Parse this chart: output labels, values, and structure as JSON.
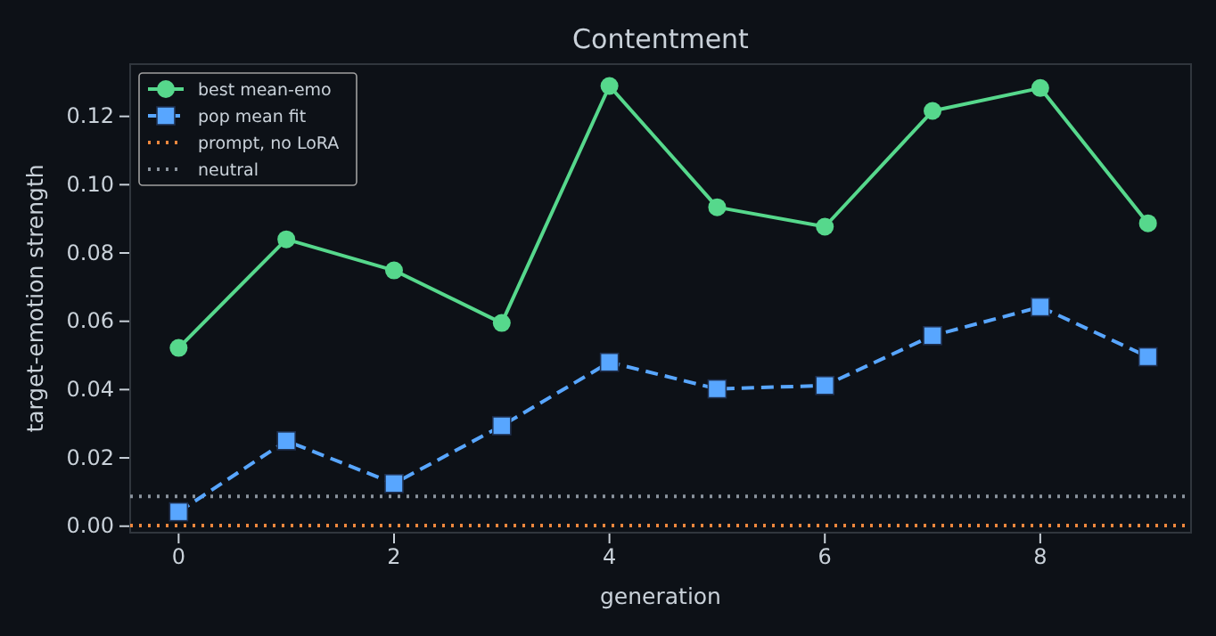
{
  "chart_data": {
    "type": "line",
    "title": "Contentment",
    "xlabel": "generation",
    "ylabel": "target-emotion strength",
    "x": [
      0,
      1,
      2,
      3,
      4,
      5,
      6,
      7,
      8,
      9
    ],
    "series": [
      {
        "name": "best mean-emo",
        "color": "#56d88c",
        "marker": "circle",
        "line_style": "solid",
        "values": [
          0.0522,
          0.084,
          0.0749,
          0.0595,
          0.1289,
          0.0934,
          0.0877,
          0.1216,
          0.1283,
          0.0887
        ]
      },
      {
        "name": "pop mean fit",
        "color": "#58a6ff",
        "marker": "square",
        "line_style": "dashed",
        "values": [
          0.0042,
          0.025,
          0.0125,
          0.0294,
          0.048,
          0.0402,
          0.0412,
          0.0558,
          0.0642,
          0.0496
        ]
      }
    ],
    "ref_lines": [
      {
        "axis": "y",
        "value": 0.0002,
        "label": "prompt, no LoRA",
        "color": "#f0883e",
        "line_style": "dotted"
      },
      {
        "axis": "y",
        "value": 0.0087,
        "label": "neutral",
        "color": "#8b949e",
        "line_style": "dotted"
      }
    ],
    "xlim": [
      -0.45,
      9.4
    ],
    "xticks": [
      0,
      2,
      4,
      6,
      8
    ],
    "ylim": [
      -0.0019,
      0.1353
    ],
    "yticks": [
      {
        "value": 0,
        "label": "0.00"
      },
      {
        "value": 0.02,
        "label": "0.02"
      },
      {
        "value": 0.04,
        "label": "0.04"
      },
      {
        "value": 0.06,
        "label": "0.06"
      },
      {
        "value": 0.08,
        "label": "0.08"
      },
      {
        "value": 0.1,
        "label": "0.10"
      },
      {
        "value": 0.12,
        "label": "0.12"
      }
    ],
    "grid": false,
    "legend": "top left"
  }
}
